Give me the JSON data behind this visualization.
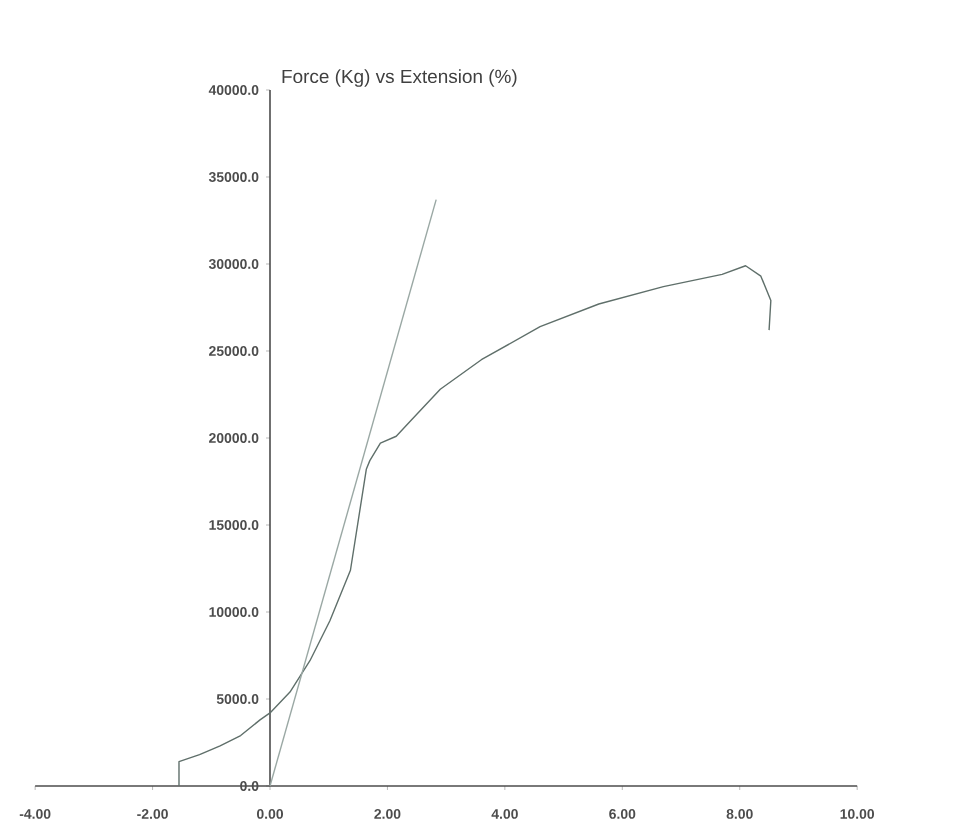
{
  "chart_data": {
    "type": "line",
    "title": "Force (Kg) vs Extension (%)",
    "xlim": [
      -4,
      10
    ],
    "ylim": [
      0,
      40000
    ],
    "xticks": [
      {
        "value": -4,
        "label": "-4.00"
      },
      {
        "value": -2,
        "label": "-2.00"
      },
      {
        "value": 0,
        "label": "0.00"
      },
      {
        "value": 2,
        "label": "2.00"
      },
      {
        "value": 4,
        "label": "4.00"
      },
      {
        "value": 6,
        "label": "6.00"
      },
      {
        "value": 8,
        "label": "8.00"
      },
      {
        "value": 10,
        "label": "10.00"
      }
    ],
    "yticks": [
      {
        "value": 0,
        "label": "0.0"
      },
      {
        "value": 5000,
        "label": "5000.0"
      },
      {
        "value": 10000,
        "label": "10000.0"
      },
      {
        "value": 15000,
        "label": "15000.0"
      },
      {
        "value": 20000,
        "label": "20000.0"
      },
      {
        "value": 25000,
        "label": "25000.0"
      },
      {
        "value": 30000,
        "label": "30000.0"
      },
      {
        "value": 35000,
        "label": "35000.0"
      },
      {
        "value": 40000,
        "label": "40000.0"
      }
    ],
    "grid": false,
    "marker": "none",
    "line_style": "solid",
    "series": [
      {
        "color": "#5f6f6a",
        "x": [
          -1.55,
          -1.55,
          -1.2,
          -0.85,
          -0.5,
          -0.17,
          0,
          0.34,
          0.68,
          1.02,
          1.37,
          1.64,
          1.7,
          1.88,
          2.15,
          2.4,
          2.9,
          3.6,
          4.6,
          5.6,
          6.7,
          7.7,
          8.1,
          8.36,
          8.53,
          8.5
        ],
        "values": [
          0,
          1400,
          1800,
          2300,
          2900,
          3800,
          4200,
          5400,
          7200,
          9500,
          12400,
          18200,
          18700,
          19700,
          20100,
          21000,
          22800,
          24500,
          26400,
          27700,
          28700,
          29400,
          29900,
          29300,
          27900,
          26200
        ]
      },
      {
        "color": "#9aa8a4",
        "x": [
          0,
          2.83
        ],
        "values": [
          0,
          33700
        ]
      }
    ]
  }
}
